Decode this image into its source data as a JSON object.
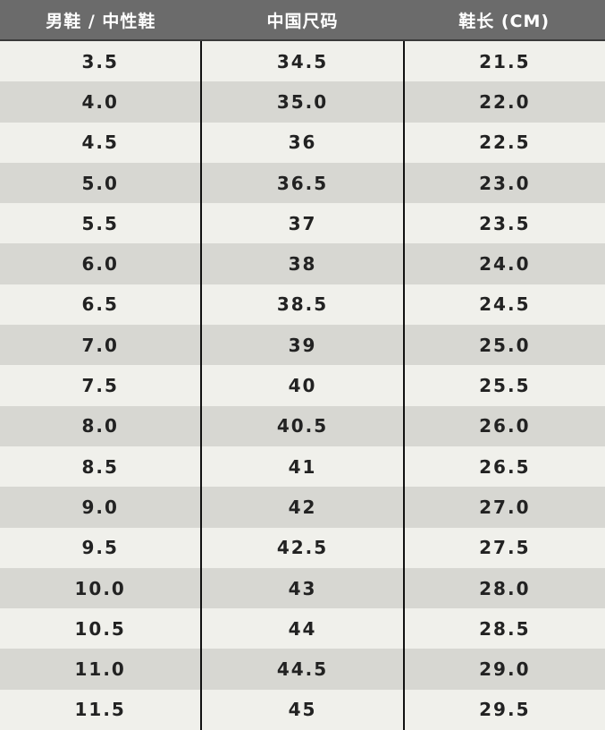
{
  "table": {
    "header": [
      "男鞋 / 中性鞋",
      "中国尺码",
      "鞋长 (CM)"
    ],
    "rows": [
      [
        "3.5",
        "34.5",
        "21.5"
      ],
      [
        "4.0",
        "35.0",
        "22.0"
      ],
      [
        "4.5",
        "36",
        "22.5"
      ],
      [
        "5.0",
        "36.5",
        "23.0"
      ],
      [
        "5.5",
        "37",
        "23.5"
      ],
      [
        "6.0",
        "38",
        "24.0"
      ],
      [
        "6.5",
        "38.5",
        "24.5"
      ],
      [
        "7.0",
        "39",
        "25.0"
      ],
      [
        "7.5",
        "40",
        "25.5"
      ],
      [
        "8.0",
        "40.5",
        "26.0"
      ],
      [
        "8.5",
        "41",
        "26.5"
      ],
      [
        "9.0",
        "42",
        "27.0"
      ],
      [
        "9.5",
        "42.5",
        "27.5"
      ],
      [
        "10.0",
        "43",
        "28.0"
      ],
      [
        "10.5",
        "44",
        "28.5"
      ],
      [
        "11.0",
        "44.5",
        "29.0"
      ],
      [
        "11.5",
        "45",
        "29.5"
      ]
    ]
  }
}
